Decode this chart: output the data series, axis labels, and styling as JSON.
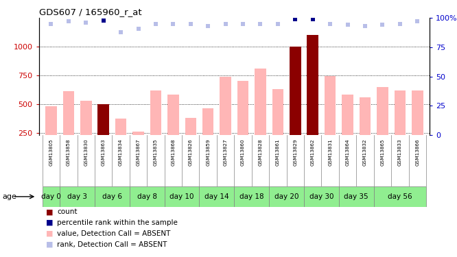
{
  "title": "GDS607 / 165960_r_at",
  "samples": [
    "GSM13805",
    "GSM13858",
    "GSM13830",
    "GSM13863",
    "GSM13834",
    "GSM13867",
    "GSM13835",
    "GSM13868",
    "GSM13826",
    "GSM13859",
    "GSM13827",
    "GSM13860",
    "GSM13828",
    "GSM13861",
    "GSM13829",
    "GSM13862",
    "GSM13831",
    "GSM13864",
    "GSM13832",
    "GSM13865",
    "GSM13833",
    "GSM13866"
  ],
  "values": [
    480,
    610,
    530,
    500,
    370,
    260,
    620,
    580,
    380,
    460,
    740,
    700,
    810,
    630,
    1000,
    1100,
    745,
    580,
    560,
    650,
    620,
    620
  ],
  "is_count": [
    false,
    false,
    false,
    true,
    false,
    false,
    false,
    false,
    false,
    false,
    false,
    false,
    false,
    false,
    true,
    true,
    false,
    false,
    false,
    false,
    false,
    false
  ],
  "rank_values": [
    95,
    97,
    96,
    98,
    88,
    91,
    95,
    95,
    95,
    93,
    95,
    95,
    95,
    95,
    99,
    99,
    95,
    94,
    93,
    94,
    95,
    97
  ],
  "rank_is_dark": [
    false,
    false,
    false,
    true,
    false,
    false,
    false,
    false,
    false,
    false,
    false,
    false,
    false,
    false,
    true,
    true,
    false,
    false,
    false,
    false,
    false,
    false
  ],
  "day_groups": [
    {
      "label": "day 0",
      "start": 0,
      "end": 1
    },
    {
      "label": "day 3",
      "start": 1,
      "end": 3
    },
    {
      "label": "day 6",
      "start": 3,
      "end": 5
    },
    {
      "label": "day 8",
      "start": 5,
      "end": 7
    },
    {
      "label": "day 10",
      "start": 7,
      "end": 9
    },
    {
      "label": "day 14",
      "start": 9,
      "end": 11
    },
    {
      "label": "day 18",
      "start": 11,
      "end": 13
    },
    {
      "label": "day 20",
      "start": 13,
      "end": 15
    },
    {
      "label": "day 30",
      "start": 15,
      "end": 17
    },
    {
      "label": "day 35",
      "start": 17,
      "end": 19
    },
    {
      "label": "day 56",
      "start": 19,
      "end": 22
    }
  ],
  "ylim_left": [
    230,
    1250
  ],
  "ylim_right": [
    0,
    100
  ],
  "yticks_left": [
    250,
    500,
    750,
    1000
  ],
  "yticks_right": [
    0,
    25,
    50,
    75,
    100
  ],
  "bar_color_absent": "#FFB6B6",
  "bar_color_count": "#8B0000",
  "rank_color_absent": "#B8BEE8",
  "rank_color_dark": "#00008B",
  "grid_color": "#000000",
  "tick_label_color_left": "#CC0000",
  "tick_label_color_right": "#0000CC",
  "bar_width": 0.65,
  "rank_marker_size": 5,
  "sample_bg_color": "#C8C8C8",
  "day_bg_color": "#90EE90",
  "legend_items": [
    {
      "color": "#8B0000",
      "label": "count"
    },
    {
      "color": "#00008B",
      "label": "percentile rank within the sample"
    },
    {
      "color": "#FFB6B6",
      "label": "value, Detection Call = ABSENT"
    },
    {
      "color": "#B8BEE8",
      "label": "rank, Detection Call = ABSENT"
    }
  ]
}
